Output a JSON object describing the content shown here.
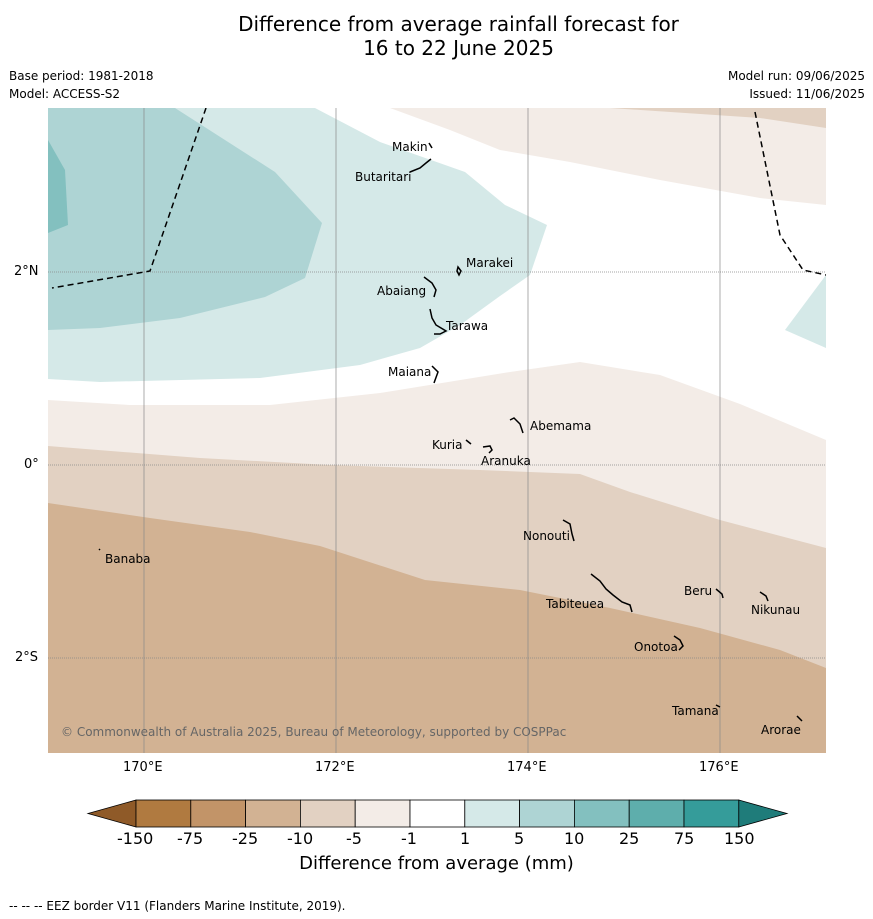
{
  "header": {
    "title_line1": "Difference from average rainfall forecast for",
    "title_line2": "16 to 22 June 2025",
    "base_period": "Base period: 1981-2018",
    "model": "Model: ACCESS-S2",
    "model_run": "Model run: 09/06/2025",
    "issued": "Issued: 11/06/2025"
  },
  "map": {
    "lat_labels": [
      "2°N",
      "0°",
      "2°S"
    ],
    "lon_labels": [
      "170°E",
      "172°E",
      "174°E",
      "176°E"
    ],
    "places": [
      "Makin",
      "Butaritari",
      "Marakei",
      "Abaiang",
      "Tarawa",
      "Maiana",
      "Abemama",
      "Kuria",
      "Aranuka",
      "Banaba",
      "Nonouti",
      "Tabiteuea",
      "Beru",
      "Nikunau",
      "Onotoa",
      "Tamana",
      "Arorae"
    ],
    "copyright": "© Commonwealth of Australia 2025, Bureau of Meteorology, supported by COSPPac"
  },
  "colorbar": {
    "title": "Difference from average (mm)",
    "tick_labels": [
      "-150",
      "-75",
      "-25",
      "-10",
      "-5",
      "-1",
      "1",
      "5",
      "10",
      "25",
      "75",
      "150"
    ],
    "colors": [
      "#b07a40",
      "#c29468",
      "#d2b293",
      "#e2d1c2",
      "#f3ece7",
      "#ffffff",
      "#d5e9e8",
      "#aed4d4",
      "#83c0bf",
      "#5eaeac",
      "#359c9a"
    ]
  },
  "footer": {
    "eez_note": "--  --  -- EEZ border V11 (Flanders Marine Institute, 2019)."
  }
}
